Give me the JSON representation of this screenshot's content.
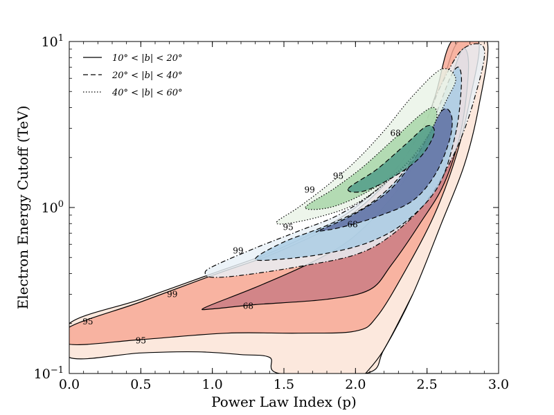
{
  "chart_data": {
    "type": "contour",
    "xlabel": "Power Law Index (p)",
    "ylabel": "Electron Energy Cutoff (TeV)",
    "xlim": [
      0.0,
      3.0
    ],
    "ylim": [
      0.1,
      10
    ],
    "yscale": "log",
    "x_ticks": [
      {
        "v": 0.0,
        "label": "0.0"
      },
      {
        "v": 0.5,
        "label": "0.5"
      },
      {
        "v": 1.0,
        "label": "1.0"
      },
      {
        "v": 1.5,
        "label": "1.5"
      },
      {
        "v": 2.0,
        "label": "2.0"
      },
      {
        "v": 2.5,
        "label": "2.5"
      },
      {
        "v": 3.0,
        "label": "3.0"
      }
    ],
    "y_ticks": [
      {
        "v": 0.1,
        "base": "10",
        "exp": "−1"
      },
      {
        "v": 1,
        "base": "10",
        "exp": "0"
      },
      {
        "v": 10,
        "base": "10",
        "exp": "1"
      }
    ],
    "legend": {
      "position": "top-left",
      "entries": [
        {
          "label": "10° < |b| < 20°",
          "style": "solid"
        },
        {
          "label": "20° < |b| < 40°",
          "style": "dashed"
        },
        {
          "label": "40° < |b| < 60°",
          "style": "dotted"
        }
      ]
    },
    "regions": [
      {
        "name": "red-99",
        "series": "10° < |b| < 20°",
        "level": 99,
        "fill": "#fbe3d6",
        "style": "solid",
        "points": [
          [
            0.0,
            0.2
          ],
          [
            0.5,
            0.28
          ],
          [
            1.0,
            0.4
          ],
          [
            1.5,
            0.58
          ],
          [
            2.0,
            1.0
          ],
          [
            2.4,
            2.3
          ],
          [
            2.6,
            5.5
          ],
          [
            2.72,
            10
          ],
          [
            2.92,
            10
          ],
          [
            2.86,
            4.0
          ],
          [
            2.76,
            1.8
          ],
          [
            2.6,
            0.8
          ],
          [
            2.4,
            0.3
          ],
          [
            2.2,
            0.14
          ],
          [
            2.07,
            0.1
          ],
          [
            1.47,
            0.1
          ],
          [
            1.4,
            0.125
          ],
          [
            1.2,
            0.13
          ],
          [
            0.9,
            0.135
          ],
          [
            0.5,
            0.133
          ],
          [
            0.0,
            0.125
          ]
        ]
      },
      {
        "name": "red-95",
        "series": "10° < |b| < 20°",
        "level": 95,
        "fill": "#f6a794",
        "style": "solid",
        "points": [
          [
            0.0,
            0.19
          ],
          [
            0.5,
            0.27
          ],
          [
            1.0,
            0.39
          ],
          [
            1.5,
            0.56
          ],
          [
            2.0,
            0.95
          ],
          [
            2.4,
            2.2
          ],
          [
            2.55,
            4.5
          ],
          [
            2.67,
            10
          ],
          [
            2.86,
            10
          ],
          [
            2.8,
            4.5
          ],
          [
            2.7,
            2.0
          ],
          [
            2.55,
            0.9
          ],
          [
            2.35,
            0.42
          ],
          [
            2.15,
            0.22
          ],
          [
            2.0,
            0.18
          ],
          [
            1.6,
            0.175
          ],
          [
            1.1,
            0.175
          ],
          [
            0.5,
            0.16
          ],
          [
            0.0,
            0.15
          ]
        ]
      },
      {
        "name": "red-68",
        "series": "10° < |b| < 20°",
        "level": 68,
        "fill": "#c97b82",
        "style": "solid",
        "points": [
          [
            0.95,
            0.25
          ],
          [
            1.3,
            0.33
          ],
          [
            1.7,
            0.47
          ],
          [
            2.0,
            0.68
          ],
          [
            2.3,
            1.3
          ],
          [
            2.5,
            2.6
          ],
          [
            2.65,
            5.5
          ],
          [
            2.75,
            9.0
          ],
          [
            2.79,
            7.0
          ],
          [
            2.74,
            3.0
          ],
          [
            2.62,
            1.4
          ],
          [
            2.45,
            0.8
          ],
          [
            2.25,
            0.45
          ],
          [
            2.1,
            0.32
          ],
          [
            1.8,
            0.28
          ],
          [
            1.3,
            0.26
          ],
          [
            1.0,
            0.245
          ]
        ]
      },
      {
        "name": "blue-99",
        "series": "20° < |b| < 40°",
        "level": 99,
        "fill": "#e8f0f7",
        "style": "dashdot",
        "points": [
          [
            0.95,
            0.4
          ],
          [
            1.0,
            0.44
          ],
          [
            1.3,
            0.57
          ],
          [
            1.6,
            0.72
          ],
          [
            1.9,
            0.92
          ],
          [
            2.2,
            1.4
          ],
          [
            2.45,
            2.8
          ],
          [
            2.6,
            5.5
          ],
          [
            2.75,
            9.0
          ],
          [
            2.9,
            9.0
          ],
          [
            2.83,
            4.5
          ],
          [
            2.7,
            2.2
          ],
          [
            2.5,
            1.1
          ],
          [
            2.25,
            0.68
          ],
          [
            2.0,
            0.52
          ],
          [
            1.6,
            0.44
          ],
          [
            1.2,
            0.39
          ],
          [
            1.0,
            0.38
          ]
        ]
      },
      {
        "name": "blue-95",
        "series": "20° < |b| < 40°",
        "level": 95,
        "fill": "#a8cce4",
        "style": "dashed",
        "points": [
          [
            1.3,
            0.49
          ],
          [
            1.5,
            0.62
          ],
          [
            1.8,
            0.78
          ],
          [
            2.1,
            1.05
          ],
          [
            2.35,
            1.7
          ],
          [
            2.55,
            3.5
          ],
          [
            2.66,
            6.0
          ],
          [
            2.72,
            7.0
          ],
          [
            2.74,
            5.5
          ],
          [
            2.7,
            2.8
          ],
          [
            2.58,
            1.35
          ],
          [
            2.35,
            0.82
          ],
          [
            2.1,
            0.62
          ],
          [
            1.8,
            0.53
          ],
          [
            1.5,
            0.49
          ]
        ]
      },
      {
        "name": "blue-68",
        "series": "20° < |b| < 40°",
        "level": 68,
        "fill": "#5b6ba0",
        "style": "dashed",
        "points": [
          [
            1.75,
            0.73
          ],
          [
            2.0,
            0.92
          ],
          [
            2.25,
            1.3
          ],
          [
            2.45,
            2.2
          ],
          [
            2.6,
            3.8
          ],
          [
            2.67,
            3.6
          ],
          [
            2.66,
            2.6
          ],
          [
            2.56,
            1.6
          ],
          [
            2.4,
            1.1
          ],
          [
            2.15,
            0.88
          ],
          [
            1.9,
            0.76
          ],
          [
            1.75,
            0.72
          ]
        ]
      },
      {
        "name": "green-99",
        "series": "40° < |b| < 60°",
        "level": 99,
        "fill": "#e9f3e6",
        "style": "dotted",
        "points": [
          [
            1.45,
            0.82
          ],
          [
            1.6,
            1.0
          ],
          [
            1.8,
            1.35
          ],
          [
            2.0,
            1.9
          ],
          [
            2.2,
            2.9
          ],
          [
            2.4,
            4.7
          ],
          [
            2.6,
            6.8
          ],
          [
            2.7,
            6.0
          ],
          [
            2.64,
            4.5
          ],
          [
            2.55,
            3.2
          ],
          [
            2.42,
            2.1
          ],
          [
            2.25,
            1.5
          ],
          [
            2.0,
            1.05
          ],
          [
            1.75,
            0.88
          ],
          [
            1.52,
            0.8
          ]
        ]
      },
      {
        "name": "green-95",
        "series": "40° < |b| < 60°",
        "level": 95,
        "fill": "#a6d6a6",
        "style": "dotted",
        "points": [
          [
            1.65,
            1.0
          ],
          [
            1.85,
            1.3
          ],
          [
            2.05,
            1.75
          ],
          [
            2.25,
            2.5
          ],
          [
            2.45,
            3.6
          ],
          [
            2.55,
            4.0
          ],
          [
            2.56,
            3.3
          ],
          [
            2.45,
            2.3
          ],
          [
            2.28,
            1.6
          ],
          [
            2.05,
            1.2
          ],
          [
            1.82,
            1.0
          ]
        ]
      },
      {
        "name": "green-68",
        "series": "40° < |b| < 60°",
        "level": 68,
        "fill": "#4e9a88",
        "style": "dashed",
        "points": [
          [
            1.95,
            1.3
          ],
          [
            2.15,
            1.7
          ],
          [
            2.35,
            2.4
          ],
          [
            2.5,
            3.1
          ],
          [
            2.55,
            2.8
          ],
          [
            2.45,
            2.0
          ],
          [
            2.25,
            1.5
          ],
          [
            2.05,
            1.25
          ]
        ]
      }
    ],
    "open_lines": [
      {
        "name": "red-99-lower-right-edge",
        "style": "solid",
        "points": [
          [
            2.07,
            0.1
          ],
          [
            2.2,
            0.14
          ],
          [
            2.4,
            0.3
          ]
        ]
      }
    ],
    "contour_labels": [
      {
        "text": "99",
        "x": 0.72,
        "y": 0.3
      },
      {
        "text": "95",
        "x": 0.13,
        "y": 0.205
      },
      {
        "text": "95",
        "x": 0.5,
        "y": 0.158
      },
      {
        "text": "68",
        "x": 1.25,
        "y": 0.255
      },
      {
        "text": "99",
        "x": 1.18,
        "y": 0.55
      },
      {
        "text": "95",
        "x": 1.53,
        "y": 0.76
      },
      {
        "text": "68",
        "x": 1.98,
        "y": 0.79
      },
      {
        "text": "99",
        "x": 1.68,
        "y": 1.28
      },
      {
        "text": "95",
        "x": 1.88,
        "y": 1.55
      },
      {
        "text": "68",
        "x": 2.28,
        "y": 2.8
      }
    ]
  }
}
